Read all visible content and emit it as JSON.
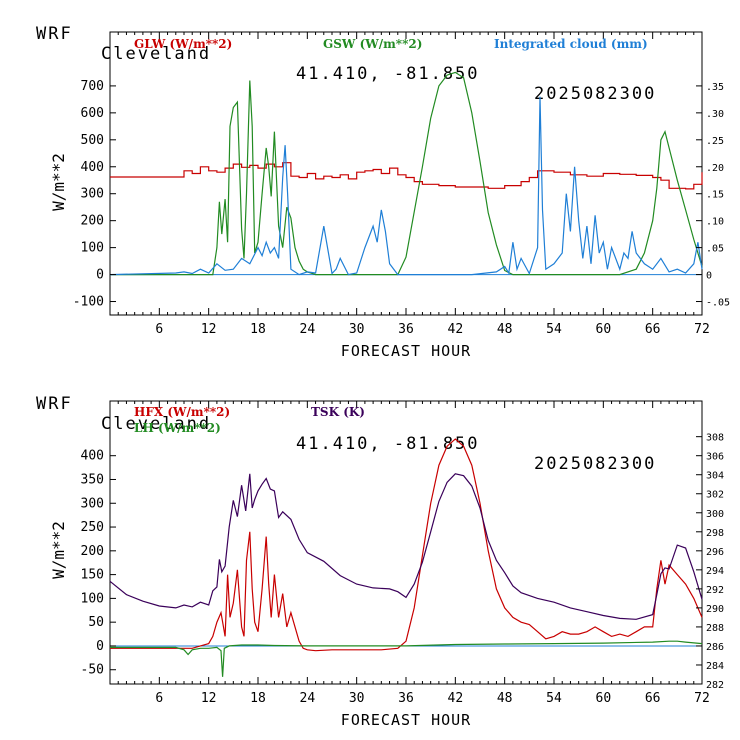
{
  "panel_top": {
    "header": {
      "model": "WRF",
      "city": "Cleveland",
      "coords": "41.410, -81.850",
      "date": "2025082300"
    },
    "ylabel": "W/m**2",
    "xlabel": "FORECAST HOUR",
    "legend": [
      "GLW (W/m**2)",
      "GSW (W/m**2)",
      "Integrated cloud (mm)"
    ],
    "colors": {
      "GLW": "#c80000",
      "GSW": "#228b22",
      "CLOUD": "#1f7fd6"
    }
  },
  "panel_bottom": {
    "header": {
      "model": "WRF",
      "city": "Cleveland",
      "coords": "41.410, -81.850",
      "date": "2025082300"
    },
    "ylabel": "W/m**2",
    "xlabel": "FORECAST HOUR",
    "legend": [
      "HFX (W/m**2)",
      "LH  (W/m**2)",
      "TSK (K)"
    ],
    "colors": {
      "HFX": "#c80000",
      "LH": "#228b22",
      "TSK": "#3a005a"
    }
  },
  "chart_data": [
    {
      "type": "line",
      "x_ticks": [
        6,
        12,
        18,
        24,
        30,
        36,
        42,
        48,
        54,
        60,
        66,
        72
      ],
      "xlim": [
        0,
        72
      ],
      "ylim": [
        -150,
        900
      ],
      "y_ticks": [
        -100,
        0,
        100,
        200,
        300,
        400,
        500,
        600,
        700
      ],
      "y2lim": [
        -0.075,
        0.45
      ],
      "y2_ticks": [
        -0.05,
        0,
        0.05,
        0.1,
        0.15,
        0.2,
        0.25,
        0.3,
        0.35
      ],
      "y2_tick_labels": [
        "-.05",
        "0",
        ".05",
        ".10",
        ".15",
        ".20",
        ".25",
        ".30",
        ".35"
      ],
      "series": [
        {
          "name": "GLW (W/m**2)",
          "axis": "left",
          "step": true,
          "x": [
            0,
            7,
            9,
            10,
            11,
            12,
            13,
            14,
            15,
            16,
            17,
            18,
            19,
            20,
            21,
            22,
            23,
            24,
            25,
            26,
            27,
            28,
            29,
            30,
            31,
            32,
            33,
            34,
            35,
            36,
            37,
            38,
            40,
            42,
            44,
            46,
            48,
            50,
            51,
            52,
            54,
            56,
            58,
            60,
            62,
            64,
            66,
            67,
            68,
            70,
            71,
            72
          ],
          "y": [
            362,
            362,
            385,
            375,
            400,
            385,
            380,
            395,
            410,
            398,
            405,
            395,
            410,
            400,
            415,
            365,
            360,
            375,
            355,
            365,
            360,
            370,
            355,
            380,
            385,
            390,
            375,
            395,
            370,
            360,
            345,
            335,
            330,
            325,
            325,
            320,
            330,
            345,
            360,
            385,
            380,
            370,
            365,
            375,
            372,
            368,
            360,
            350,
            320,
            318,
            335,
            380
          ]
        },
        {
          "name": "GSW (W/m**2)",
          "axis": "left",
          "x": [
            0,
            12.5,
            13,
            13.3,
            13.6,
            14,
            14.3,
            14.6,
            15,
            15.5,
            16,
            16.3,
            16.6,
            17,
            17.3,
            17.6,
            18,
            18.5,
            19,
            19.3,
            19.6,
            20,
            20.5,
            21,
            21.5,
            22,
            22.5,
            23,
            23.5,
            24,
            24.5,
            25,
            26,
            28,
            30,
            32,
            34,
            35,
            36,
            38,
            39,
            40,
            41,
            42,
            43,
            44,
            45,
            46,
            47,
            48,
            49,
            50,
            52,
            54,
            56,
            58,
            60,
            62,
            64,
            65,
            66,
            66.5,
            67,
            67.5,
            68,
            69,
            70,
            71,
            72
          ],
          "y": [
            0,
            0,
            100,
            270,
            150,
            280,
            120,
            550,
            620,
            640,
            170,
            60,
            300,
            720,
            550,
            80,
            120,
            300,
            470,
            400,
            290,
            530,
            180,
            100,
            250,
            210,
            100,
            50,
            20,
            10,
            5,
            0,
            0,
            0,
            0,
            0,
            0,
            0,
            65,
            400,
            580,
            700,
            740,
            750,
            730,
            600,
            420,
            230,
            110,
            15,
            0,
            0,
            0,
            0,
            0,
            0,
            0,
            0,
            20,
            80,
            200,
            320,
            500,
            530,
            470,
            350,
            240,
            130,
            30
          ]
        },
        {
          "name": "Integrated cloud (mm)",
          "axis": "right",
          "x": [
            0,
            8,
            9,
            10,
            11,
            12,
            13,
            14,
            15,
            16,
            17,
            18,
            18.5,
            19,
            19.5,
            20,
            20.5,
            21,
            21.3,
            21.6,
            22,
            23,
            24,
            25,
            26,
            27,
            27.5,
            28,
            29,
            30,
            31,
            32,
            32.5,
            33,
            33.5,
            34,
            35,
            36,
            40,
            44,
            47,
            48,
            48.5,
            49,
            49.5,
            50,
            51,
            52,
            52.3,
            52.6,
            53,
            54,
            55,
            55.5,
            56,
            56.5,
            57,
            57.5,
            58,
            58.5,
            59,
            59.5,
            60,
            60.5,
            61,
            62,
            62.5,
            63,
            63.5,
            64,
            65,
            66,
            67,
            68,
            69,
            70,
            71,
            71.5,
            72
          ],
          "y": [
            0,
            0.003,
            0.005,
            0.002,
            0.01,
            0.003,
            0.02,
            0.008,
            0.01,
            0.03,
            0.02,
            0.05,
            0.035,
            0.06,
            0.04,
            0.05,
            0.03,
            0.18,
            0.24,
            0.15,
            0.01,
            0,
            0.005,
            0.003,
            0.09,
            0.002,
            0.01,
            0.03,
            0,
            0.003,
            0.05,
            0.09,
            0.06,
            0.12,
            0.08,
            0.02,
            0,
            0,
            0,
            0,
            0.005,
            0.015,
            0.003,
            0.06,
            0.01,
            0.03,
            0.002,
            0.05,
            0.33,
            0.12,
            0.01,
            0.02,
            0.04,
            0.15,
            0.08,
            0.2,
            0.1,
            0.03,
            0.09,
            0.02,
            0.11,
            0.04,
            0.06,
            0.01,
            0.05,
            0.01,
            0.04,
            0.03,
            0.08,
            0.04,
            0.02,
            0.01,
            0.03,
            0.005,
            0.01,
            0.003,
            0.02,
            0.06,
            0.01
          ]
        }
      ]
    },
    {
      "type": "line",
      "x_ticks": [
        6,
        12,
        18,
        24,
        30,
        36,
        42,
        48,
        54,
        60,
        66,
        72
      ],
      "xlim": [
        0,
        72
      ],
      "ylim": [
        -80,
        515
      ],
      "y_ticks": [
        -50,
        0,
        50,
        100,
        150,
        200,
        250,
        300,
        350,
        400
      ],
      "y2lim": [
        282,
        311.75
      ],
      "y2_ticks": [
        282,
        284,
        286,
        288,
        290,
        292,
        294,
        296,
        298,
        300,
        302,
        304,
        306,
        308
      ],
      "series": [
        {
          "name": "HFX (W/m**2)",
          "axis": "left",
          "x": [
            0,
            10,
            11,
            12,
            12.5,
            13,
            13.5,
            14,
            14.3,
            14.6,
            15,
            15.5,
            16,
            16.3,
            16.6,
            17,
            17.3,
            17.6,
            18,
            18.5,
            19,
            19.3,
            19.6,
            20,
            20.5,
            21,
            21.5,
            22,
            22.5,
            23,
            23.5,
            24,
            25,
            27,
            30,
            33,
            35,
            36,
            37,
            38,
            39,
            40,
            41,
            42,
            43,
            44,
            45,
            46,
            47,
            48,
            49,
            50,
            51,
            52,
            53,
            54,
            55,
            56,
            57,
            58,
            59,
            60,
            61,
            62,
            63,
            64,
            65,
            66,
            66.5,
            67,
            67.5,
            68,
            69,
            70,
            71,
            72
          ],
          "y": [
            -5,
            -5,
            0,
            5,
            20,
            50,
            70,
            20,
            150,
            60,
            90,
            160,
            40,
            20,
            180,
            240,
            120,
            50,
            30,
            120,
            230,
            130,
            60,
            150,
            60,
            110,
            40,
            70,
            40,
            10,
            -5,
            -8,
            -10,
            -8,
            -8,
            -8,
            -5,
            10,
            80,
            190,
            300,
            380,
            420,
            435,
            420,
            380,
            300,
            200,
            120,
            80,
            60,
            50,
            45,
            30,
            15,
            20,
            30,
            25,
            25,
            30,
            40,
            30,
            20,
            25,
            20,
            30,
            40,
            40,
            120,
            180,
            130,
            170,
            150,
            130,
            100,
            60
          ]
        },
        {
          "name": "LH  (W/m**2)",
          "axis": "left",
          "x": [
            0,
            8,
            9,
            9.5,
            10,
            11,
            12,
            13,
            13.5,
            13.7,
            13.9,
            14.5,
            16,
            18,
            20,
            24,
            30,
            36,
            42,
            48,
            54,
            60,
            66,
            68,
            69,
            70,
            72
          ],
          "y": [
            -3,
            -3,
            -8,
            -18,
            -8,
            -5,
            -5,
            -3,
            -10,
            -65,
            -5,
            0,
            2,
            2,
            1,
            0,
            0,
            0,
            3,
            4,
            5,
            6,
            8,
            10,
            10,
            8,
            5
          ]
        },
        {
          "name": "TSK (K)",
          "axis": "right",
          "x": [
            0,
            2,
            4,
            6,
            8,
            9,
            10,
            11,
            12,
            12.5,
            13,
            13.3,
            13.6,
            14,
            14.5,
            15,
            15.5,
            16,
            16.5,
            17,
            17.3,
            17.6,
            18,
            18.5,
            19,
            19.5,
            20,
            20.5,
            21,
            22,
            23,
            24,
            26,
            28,
            30,
            32,
            34,
            35,
            36,
            37,
            38,
            39,
            40,
            41,
            42,
            43,
            44,
            45,
            46,
            47,
            48,
            49,
            50,
            52,
            54,
            56,
            58,
            60,
            62,
            64,
            66,
            66.5,
            67,
            67.5,
            68,
            69,
            70,
            71,
            72
          ],
          "y": [
            292.8,
            291.4,
            290.7,
            290.2,
            290.0,
            290.3,
            290.1,
            290.6,
            290.3,
            291.8,
            292.2,
            295.1,
            293.8,
            294.4,
            298.5,
            301.3,
            299.6,
            302.9,
            300.2,
            304.1,
            300.5,
            301.4,
            302.3,
            303.0,
            303.6,
            302.5,
            302.3,
            299.5,
            300.1,
            299.3,
            297.2,
            295.8,
            294.9,
            293.4,
            292.5,
            292.1,
            292.0,
            291.7,
            291.1,
            292.5,
            294.8,
            298.0,
            301.2,
            303.2,
            304.1,
            303.9,
            302.8,
            300.5,
            297.1,
            295.0,
            293.7,
            292.3,
            291.6,
            291.0,
            290.6,
            290.0,
            289.6,
            289.2,
            288.9,
            288.8,
            289.3,
            291.4,
            293.6,
            294.2,
            294.1,
            296.6,
            296.3,
            293.8,
            290.9
          ]
        }
      ]
    }
  ]
}
